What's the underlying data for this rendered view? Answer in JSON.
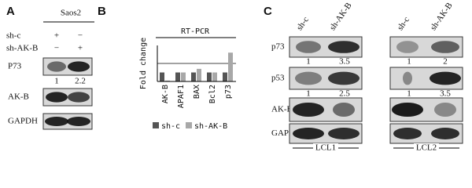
{
  "panel_a": {
    "label": "A",
    "cell_line": "Saos2",
    "conditions": [
      {
        "name": "sh-c",
        "marks": [
          "+",
          "−"
        ]
      },
      {
        "name": "sh-AK-B",
        "marks": [
          "−",
          "+"
        ]
      }
    ],
    "blots": [
      "P73",
      "AK-B",
      "GAPDH"
    ],
    "quant": [
      1,
      2.2
    ]
  },
  "chart_data": {
    "type": "bar",
    "panel_label": "B",
    "title": "RT-PCR",
    "y_label": "Fold change",
    "categories": [
      "AK-B",
      "APAF1",
      "BAX",
      "Bcl2",
      "p73"
    ],
    "series": [
      {
        "name": "sh-c",
        "color": "#555555",
        "values": [
          1,
          1,
          1,
          1,
          1
        ]
      },
      {
        "name": "sh-AK-B",
        "color": "#a8a8a8",
        "values": [
          0.1,
          1,
          1.4,
          1,
          3.2
        ]
      }
    ],
    "ylim": [
      0,
      4
    ],
    "reference_line": 2
  },
  "panel_c": {
    "label": "C",
    "blots": [
      "p73",
      "p53",
      "AK-B",
      "GAPDH"
    ],
    "groups": [
      {
        "name": "LCL1",
        "columns": [
          "sh-c",
          "sh-AK-B"
        ],
        "quant": [
          [
            1,
            3.5
          ],
          [
            1,
            2.5
          ]
        ]
      },
      {
        "name": "LCL2",
        "columns": [
          "sh-c",
          "sh-AK-B"
        ],
        "quant": [
          [
            1,
            2
          ],
          [
            1,
            3.5
          ]
        ]
      }
    ]
  }
}
